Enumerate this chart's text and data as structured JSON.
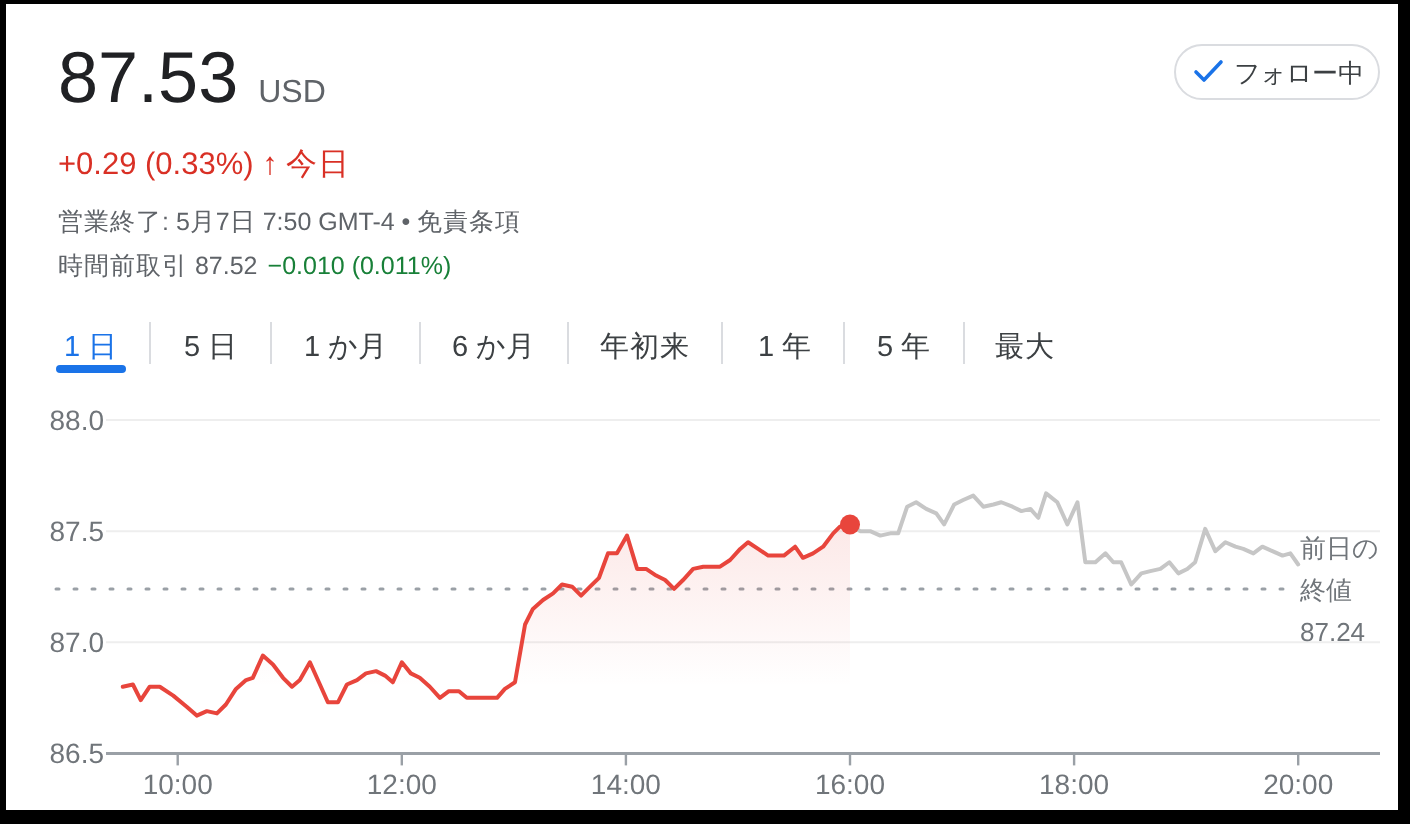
{
  "chart_data": {
    "type": "line",
    "title": "87.53 USD",
    "subtitle": "+0.29 (0.33%) ↑ 今日",
    "annotations": [
      "営業終了: 5月7日 7:50 GMT-4 • 免責条項",
      "時間前取引 87.52",
      "−0.010 (0.011%)",
      "フォロー中",
      "1 日",
      "5 日",
      "1 か月",
      "6 か月",
      "年初来",
      "1 年",
      "5 年",
      "最大"
    ],
    "series": [
      {
        "type": "area",
        "color": "#e8453c",
        "x": [
          9.51,
          9.6,
          9.67,
          9.75,
          9.84,
          9.96,
          10.08,
          10.17,
          10.26,
          10.35,
          10.43,
          10.52,
          10.61,
          10.67,
          10.76,
          10.85,
          10.94,
          11.02,
          11.09,
          11.18,
          11.26,
          11.34,
          11.43,
          11.51,
          11.6,
          11.68,
          11.77,
          11.85,
          11.92,
          12.0,
          12.08,
          12.16,
          12.25,
          12.34,
          12.42,
          12.51,
          12.58,
          12.67,
          12.76,
          12.85,
          12.92,
          13.01,
          13.1,
          13.17,
          13.26,
          13.35,
          13.43,
          13.52,
          13.6,
          13.68,
          13.76,
          13.84,
          13.92,
          14.01,
          14.1,
          14.18,
          14.27,
          14.35,
          14.43,
          14.51,
          14.6,
          14.69,
          14.84,
          14.93,
          15.02,
          15.09,
          15.18,
          15.27,
          15.41,
          15.51,
          15.58,
          15.67,
          15.76,
          15.85,
          15.91,
          16.0
        ],
        "values": [
          86.8,
          86.81,
          86.74,
          86.8,
          86.8,
          86.76,
          86.71,
          86.67,
          86.69,
          86.68,
          86.72,
          86.79,
          86.83,
          86.84,
          86.94,
          86.9,
          86.84,
          86.8,
          86.83,
          86.91,
          86.82,
          86.73,
          86.73,
          86.81,
          86.83,
          86.86,
          86.87,
          86.85,
          86.82,
          86.91,
          86.86,
          86.84,
          86.8,
          86.75,
          86.78,
          86.78,
          86.75,
          86.75,
          86.75,
          86.75,
          86.79,
          86.82,
          87.08,
          87.15,
          87.19,
          87.22,
          87.26,
          87.25,
          87.21,
          87.25,
          87.29,
          87.4,
          87.4,
          87.48,
          87.33,
          87.33,
          87.3,
          87.28,
          87.24,
          87.28,
          87.33,
          87.34,
          87.34,
          87.37,
          87.42,
          87.45,
          87.42,
          87.39,
          87.39,
          87.43,
          87.38,
          87.4,
          87.43,
          87.49,
          87.52,
          87.53
        ]
      },
      {
        "color": "#c6c6c6",
        "x": [
          16.0,
          16.09,
          16.18,
          16.27,
          16.36,
          16.43,
          16.51,
          16.59,
          16.68,
          16.77,
          16.84,
          16.93,
          17.01,
          17.1,
          17.19,
          17.28,
          17.35,
          17.45,
          17.53,
          17.61,
          17.68,
          17.75,
          17.85,
          17.94,
          18.03,
          18.1,
          18.19,
          18.28,
          18.35,
          18.42,
          18.51,
          18.6,
          18.68,
          18.77,
          18.85,
          18.93,
          19.01,
          19.08,
          19.17,
          19.26,
          19.35,
          19.44,
          19.51,
          19.6,
          19.68,
          19.77,
          19.86,
          19.93,
          20.0
        ],
        "values": [
          87.53,
          87.5,
          87.5,
          87.48,
          87.49,
          87.49,
          87.61,
          87.63,
          87.6,
          87.58,
          87.53,
          87.62,
          87.64,
          87.66,
          87.61,
          87.62,
          87.63,
          87.61,
          87.59,
          87.6,
          87.56,
          87.67,
          87.63,
          87.53,
          87.63,
          87.36,
          87.36,
          87.4,
          87.36,
          87.36,
          87.26,
          87.31,
          87.32,
          87.33,
          87.36,
          87.31,
          87.33,
          87.36,
          87.51,
          87.41,
          87.45,
          87.43,
          87.42,
          87.4,
          87.43,
          87.41,
          87.39,
          87.4,
          87.35
        ]
      },
      {
        "type": "scatter",
        "color": "#e8453c",
        "x": [
          16.0
        ],
        "values": [
          87.53
        ]
      }
    ],
    "xlim": [
      9.36,
      20.73
    ],
    "xticks": [
      {
        "value": 10,
        "label": "10:00"
      },
      {
        "value": 12,
        "label": "12:00"
      },
      {
        "value": 14,
        "label": "14:00"
      },
      {
        "value": 16,
        "label": "16:00"
      },
      {
        "value": 18,
        "label": "18:00"
      },
      {
        "value": 20,
        "label": "20:00"
      }
    ],
    "ylim": [
      86.5,
      88.0
    ],
    "yticks": [
      {
        "value": 86.5,
        "label": "86.5"
      },
      {
        "value": 87,
        "label": "87.0"
      },
      {
        "value": 87.5,
        "label": "87.5"
      },
      {
        "value": 88,
        "label": "88.0"
      }
    ],
    "ref_lines": [
      {
        "axis": "y",
        "value": 87.24,
        "label": "前日の終値 87.24",
        "color": "#9aa0a6",
        "line_style": "dotted"
      }
    ],
    "grid": "y"
  }
}
